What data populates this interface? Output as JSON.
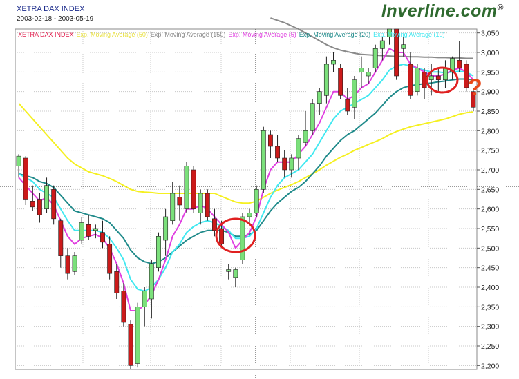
{
  "header": {
    "title": "XETRA DAX INDEX",
    "date_range": "2003-02-18 - 2003-05-19",
    "brand_part1": "Inver",
    "brand_part2": "line.com",
    "brand_mark": "®"
  },
  "annotation": {
    "question_mark": "?"
  },
  "colors": {
    "up": "#7be07b",
    "down": "#cc1a1a",
    "ema5": "#e040e0",
    "ema10": "#40e8f0",
    "ema20": "#1f8a8a",
    "ema50": "#f5f020",
    "ema150": "#8a8a8a",
    "circles": "#e02020",
    "brand": "#2f6a2f"
  },
  "chart_data": {
    "type": "candlestick",
    "title": "XETRA DAX INDEX",
    "subtitle": "2003-02-18 - 2003-05-19",
    "ylim": [
      2190,
      3060
    ],
    "yticks": [
      "2,200",
      "2,250",
      "2,300",
      "2,350",
      "2,400",
      "2,450",
      "2,500",
      "2,550",
      "2,600",
      "2,650",
      "2,700",
      "2,750",
      "2,800",
      "2,850",
      "2,900",
      "2,950",
      "3,000",
      "3,050"
    ],
    "ytick_values": [
      2200,
      2250,
      2300,
      2350,
      2400,
      2450,
      2500,
      2550,
      2600,
      2650,
      2700,
      2750,
      2800,
      2850,
      2900,
      2950,
      3000,
      3050
    ],
    "grid": true,
    "legend": [
      {
        "name": "XETRA DAX INDEX",
        "color": "#e01a4a"
      },
      {
        "name": "Exp. Moving Average (50)",
        "color": "#e8e040"
      },
      {
        "name": "Exp. Moving Average (150)",
        "color": "#8a8a8a"
      },
      {
        "name": "Exp. Moving Average (5)",
        "color": "#e040e0"
      },
      {
        "name": "Exp. Moving Average (20)",
        "color": "#1f8a8a"
      },
      {
        "name": "Exp. Moving Average (10)",
        "color": "#40e8f0"
      }
    ],
    "candles": [
      {
        "o": 2710,
        "h": 2740,
        "l": 2680,
        "c": 2735
      },
      {
        "o": 2730,
        "h": 2735,
        "l": 2610,
        "c": 2625
      },
      {
        "o": 2620,
        "h": 2660,
        "l": 2595,
        "c": 2605
      },
      {
        "o": 2625,
        "h": 2640,
        "l": 2565,
        "c": 2585
      },
      {
        "o": 2600,
        "h": 2680,
        "l": 2590,
        "c": 2660
      },
      {
        "o": 2650,
        "h": 2660,
        "l": 2560,
        "c": 2575
      },
      {
        "o": 2570,
        "h": 2575,
        "l": 2450,
        "c": 2480
      },
      {
        "o": 2480,
        "h": 2500,
        "l": 2420,
        "c": 2435
      },
      {
        "o": 2440,
        "h": 2490,
        "l": 2430,
        "c": 2480
      },
      {
        "o": 2520,
        "h": 2580,
        "l": 2510,
        "c": 2565
      },
      {
        "o": 2560,
        "h": 2585,
        "l": 2520,
        "c": 2530
      },
      {
        "o": 2545,
        "h": 2560,
        "l": 2525,
        "c": 2550
      },
      {
        "o": 2540,
        "h": 2570,
        "l": 2500,
        "c": 2515
      },
      {
        "o": 2510,
        "h": 2530,
        "l": 2420,
        "c": 2435
      },
      {
        "o": 2440,
        "h": 2460,
        "l": 2370,
        "c": 2385
      },
      {
        "o": 2390,
        "h": 2410,
        "l": 2300,
        "c": 2310
      },
      {
        "o": 2305,
        "h": 2315,
        "l": 2190,
        "c": 2200
      },
      {
        "o": 2205,
        "h": 2360,
        "l": 2195,
        "c": 2350
      },
      {
        "o": 2350,
        "h": 2400,
        "l": 2300,
        "c": 2390
      },
      {
        "o": 2370,
        "h": 2470,
        "l": 2320,
        "c": 2460
      },
      {
        "o": 2450,
        "h": 2540,
        "l": 2440,
        "c": 2530
      },
      {
        "o": 2520,
        "h": 2600,
        "l": 2480,
        "c": 2580
      },
      {
        "o": 2570,
        "h": 2670,
        "l": 2560,
        "c": 2640
      },
      {
        "o": 2630,
        "h": 2660,
        "l": 2570,
        "c": 2610
      },
      {
        "o": 2600,
        "h": 2720,
        "l": 2590,
        "c": 2710
      },
      {
        "o": 2700,
        "h": 2710,
        "l": 2590,
        "c": 2600
      },
      {
        "o": 2590,
        "h": 2650,
        "l": 2560,
        "c": 2640
      },
      {
        "o": 2640,
        "h": 2650,
        "l": 2570,
        "c": 2580
      },
      {
        "o": 2575,
        "h": 2600,
        "l": 2530,
        "c": 2545
      },
      {
        "o": 2550,
        "h": 2570,
        "l": 2500,
        "c": 2510
      },
      {
        "o": 2440,
        "h": 2460,
        "l": 2420,
        "c": 2445
      },
      {
        "o": 2425,
        "h": 2450,
        "l": 2400,
        "c": 2445
      },
      {
        "o": 2470,
        "h": 2590,
        "l": 2460,
        "c": 2580
      },
      {
        "o": 2580,
        "h": 2600,
        "l": 2560,
        "c": 2590
      },
      {
        "o": 2590,
        "h": 2660,
        "l": 2580,
        "c": 2650
      },
      {
        "o": 2650,
        "h": 2810,
        "l": 2640,
        "c": 2800
      },
      {
        "o": 2790,
        "h": 2800,
        "l": 2730,
        "c": 2760
      },
      {
        "o": 2760,
        "h": 2790,
        "l": 2720,
        "c": 2730
      },
      {
        "o": 2730,
        "h": 2750,
        "l": 2680,
        "c": 2700
      },
      {
        "o": 2700,
        "h": 2740,
        "l": 2680,
        "c": 2730
      },
      {
        "o": 2730,
        "h": 2790,
        "l": 2700,
        "c": 2780
      },
      {
        "o": 2770,
        "h": 2850,
        "l": 2760,
        "c": 2800
      },
      {
        "o": 2800,
        "h": 2880,
        "l": 2790,
        "c": 2870
      },
      {
        "o": 2870,
        "h": 2910,
        "l": 2840,
        "c": 2900
      },
      {
        "o": 2890,
        "h": 2990,
        "l": 2870,
        "c": 2970
      },
      {
        "o": 2970,
        "h": 3000,
        "l": 2950,
        "c": 2980
      },
      {
        "o": 2960,
        "h": 2970,
        "l": 2880,
        "c": 2890
      },
      {
        "o": 2880,
        "h": 2910,
        "l": 2840,
        "c": 2850
      },
      {
        "o": 2860,
        "h": 2940,
        "l": 2830,
        "c": 2930
      },
      {
        "o": 2950,
        "h": 2990,
        "l": 2910,
        "c": 2960
      },
      {
        "o": 2940,
        "h": 2960,
        "l": 2920,
        "c": 2950
      },
      {
        "o": 2960,
        "h": 3020,
        "l": 2950,
        "c": 3010
      },
      {
        "o": 3010,
        "h": 3040,
        "l": 2980,
        "c": 3030
      },
      {
        "o": 3040,
        "h": 3080,
        "l": 3020,
        "c": 3070
      },
      {
        "o": 3060,
        "h": 3070,
        "l": 2930,
        "c": 2940
      },
      {
        "o": 3010,
        "h": 3040,
        "l": 2990,
        "c": 3020
      },
      {
        "o": 2970,
        "h": 3000,
        "l": 2880,
        "c": 2890
      },
      {
        "o": 2900,
        "h": 2970,
        "l": 2890,
        "c": 2960
      },
      {
        "o": 2950,
        "h": 2960,
        "l": 2880,
        "c": 2910
      },
      {
        "o": 2930,
        "h": 2970,
        "l": 2890,
        "c": 2940
      },
      {
        "o": 2940,
        "h": 2960,
        "l": 2900,
        "c": 2930
      },
      {
        "o": 2930,
        "h": 2980,
        "l": 2910,
        "c": 2960
      },
      {
        "o": 2950,
        "h": 2990,
        "l": 2930,
        "c": 2985
      },
      {
        "o": 2980,
        "h": 3030,
        "l": 2950,
        "c": 2960
      },
      {
        "o": 2970,
        "h": 2980,
        "l": 2900,
        "c": 2910
      },
      {
        "o": 2900,
        "h": 2910,
        "l": 2850,
        "c": 2860
      }
    ],
    "ema5": [
      2680,
      2660,
      2640,
      2620,
      2630,
      2610,
      2570,
      2530,
      2510,
      2525,
      2530,
      2535,
      2525,
      2500,
      2460,
      2410,
      2340,
      2340,
      2355,
      2380,
      2420,
      2470,
      2530,
      2560,
      2600,
      2600,
      2610,
      2600,
      2580,
      2560,
      2540,
      2500,
      2520,
      2540,
      2580,
      2650,
      2700,
      2720,
      2720,
      2720,
      2740,
      2760,
      2790,
      2820,
      2860,
      2900,
      2900,
      2880,
      2890,
      2910,
      2920,
      2950,
      2980,
      3010,
      3000,
      3000,
      2970,
      2960,
      2950,
      2940,
      2940,
      2945,
      2955,
      2960,
      2950,
      2930
    ],
    "ema10": [
      2690,
      2680,
      2670,
      2650,
      2640,
      2630,
      2600,
      2570,
      2545,
      2545,
      2545,
      2545,
      2540,
      2525,
      2500,
      2470,
      2420,
      2395,
      2390,
      2400,
      2420,
      2450,
      2490,
      2510,
      2540,
      2555,
      2565,
      2570,
      2565,
      2555,
      2545,
      2525,
      2525,
      2530,
      2550,
      2590,
      2630,
      2660,
      2680,
      2690,
      2700,
      2720,
      2740,
      2770,
      2800,
      2830,
      2850,
      2860,
      2870,
      2880,
      2890,
      2910,
      2930,
      2955,
      2965,
      2970,
      2965,
      2960,
      2955,
      2950,
      2950,
      2948,
      2950,
      2952,
      2950,
      2940
    ],
    "ema20": [
      2690,
      2685,
      2680,
      2670,
      2665,
      2655,
      2635,
      2615,
      2595,
      2590,
      2585,
      2580,
      2575,
      2565,
      2545,
      2525,
      2495,
      2475,
      2465,
      2460,
      2465,
      2475,
      2490,
      2505,
      2520,
      2530,
      2540,
      2545,
      2545,
      2545,
      2540,
      2530,
      2530,
      2535,
      2545,
      2570,
      2595,
      2615,
      2630,
      2645,
      2655,
      2670,
      2690,
      2710,
      2735,
      2755,
      2775,
      2790,
      2800,
      2815,
      2830,
      2845,
      2865,
      2885,
      2900,
      2910,
      2915,
      2918,
      2920,
      2922,
      2925,
      2927,
      2930,
      2932,
      2932,
      2930
    ],
    "ema50": [
      2870,
      2850,
      2830,
      2810,
      2790,
      2770,
      2750,
      2730,
      2715,
      2705,
      2695,
      2690,
      2685,
      2678,
      2670,
      2660,
      2650,
      2645,
      2643,
      2642,
      2640,
      2640,
      2640,
      2640,
      2640,
      2640,
      2640,
      2640,
      2640,
      2632,
      2625,
      2618,
      2615,
      2615,
      2620,
      2630,
      2640,
      2648,
      2655,
      2662,
      2670,
      2680,
      2690,
      2700,
      2712,
      2722,
      2732,
      2740,
      2750,
      2757,
      2765,
      2772,
      2780,
      2790,
      2798,
      2804,
      2810,
      2814,
      2818,
      2822,
      2826,
      2830,
      2836,
      2842,
      2846,
      2848
    ],
    "ema150": [
      null,
      null,
      null,
      null,
      null,
      null,
      null,
      null,
      null,
      null,
      null,
      null,
      null,
      null,
      null,
      null,
      null,
      null,
      null,
      null,
      null,
      null,
      null,
      null,
      null,
      null,
      null,
      null,
      null,
      null,
      null,
      null,
      null,
      null,
      null,
      null,
      3088,
      3082,
      3076,
      3068,
      3060,
      3050,
      3040,
      3030,
      3020,
      3012,
      3006,
      3002,
      2998,
      2995,
      2994,
      2993,
      2992,
      2991,
      2990,
      2990,
      2989,
      2989,
      2988,
      2988,
      2987,
      2987,
      2986,
      2986,
      2985,
      2985
    ]
  }
}
